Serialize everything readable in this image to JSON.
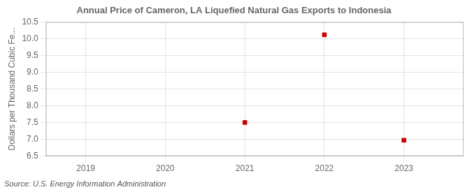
{
  "chart_data": {
    "type": "scatter",
    "title": "Annual Price of Cameron, LA Liquefied Natural Gas Exports to Indonesia",
    "ylabel": "Dollars per Thousand Cubic Fe...",
    "source": "Source: U.S. Energy Information Administration",
    "x": [
      2021,
      2022,
      2023
    ],
    "values": [
      7.5,
      10.12,
      6.97
    ],
    "color": "#cc0000",
    "marker": "square",
    "xlim": [
      2018.5,
      2023.75
    ],
    "ylim": [
      6.5,
      10.5
    ],
    "xticks": [
      2019,
      2020,
      2021,
      2022,
      2023
    ],
    "yticks": [
      6.5,
      {
        "value": 7,
        "label": "7.0"
      },
      7.5,
      {
        "value": 8,
        "label": "8.0"
      },
      8.5,
      {
        "value": 9,
        "label": "9.0"
      },
      9.5,
      {
        "value": 10,
        "label": "10.0"
      },
      10.5
    ],
    "grid": true
  }
}
